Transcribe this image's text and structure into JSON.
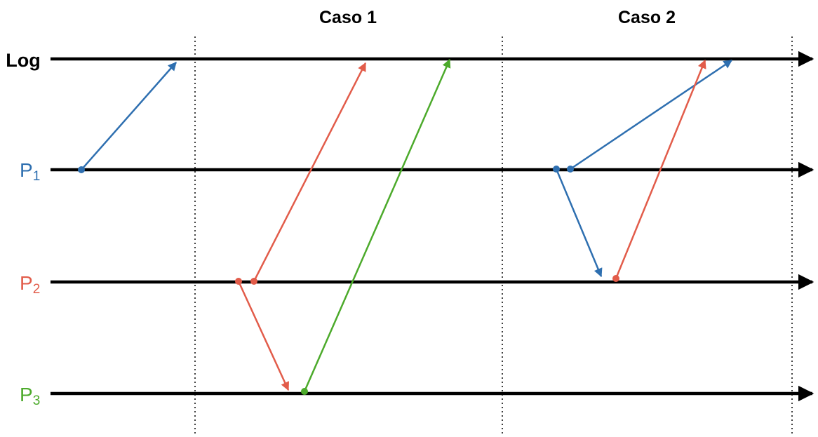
{
  "headers": {
    "case1": "Caso 1",
    "case2": "Caso 2"
  },
  "lanes": {
    "log": {
      "label": "Log",
      "color": "#000000"
    },
    "p1": {
      "label": "P",
      "subscript": "1",
      "color": "#2e6fb0"
    },
    "p2": {
      "label": "P",
      "subscript": "2",
      "color": "#e25c4a"
    },
    "p3": {
      "label": "P",
      "subscript": "3",
      "color": "#4caa2b"
    }
  },
  "colors": {
    "blue": "#2e6fb0",
    "red": "#e25c4a",
    "green": "#4caa2b",
    "axis": "#000000"
  }
}
